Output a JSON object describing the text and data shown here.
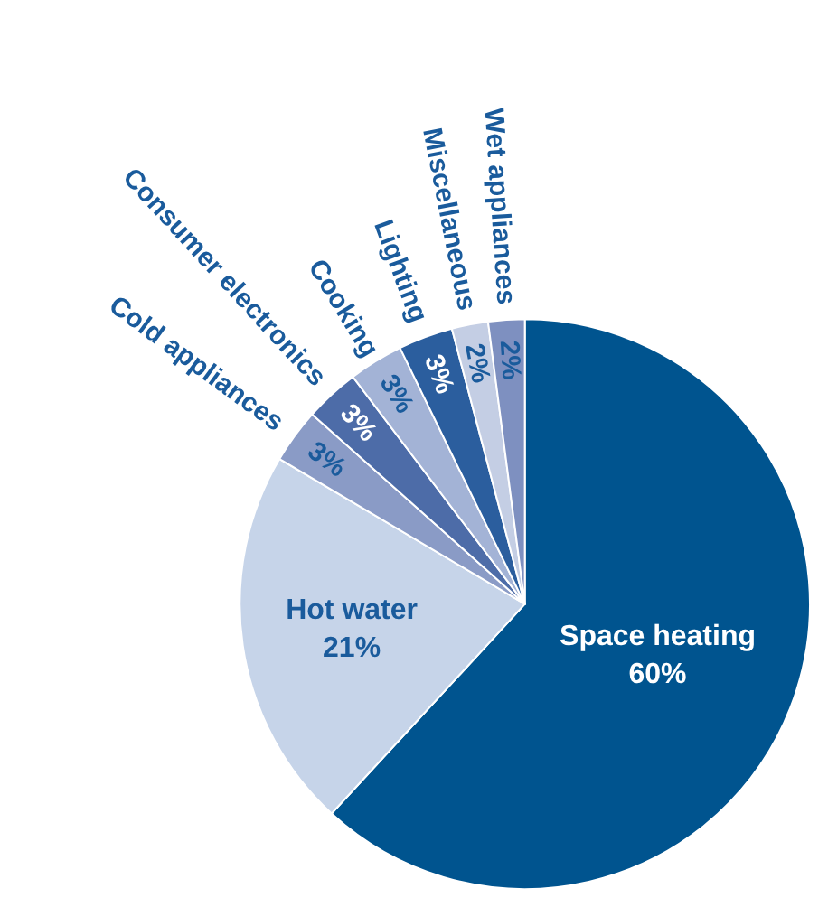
{
  "chart_data": {
    "type": "pie",
    "categories": [
      "Space heating",
      "Hot water",
      "Cold appliances",
      "Consumer electronics",
      "Cooking",
      "Lighting",
      "Miscellaneous",
      "Wet appliances"
    ],
    "values": [
      60,
      21,
      3,
      3,
      3,
      3,
      2,
      2
    ],
    "value_labels": [
      "60%",
      "21%",
      "3%",
      "3%",
      "3%",
      "3%",
      "2%",
      "2%"
    ],
    "colors": [
      "#00548f",
      "#c6d4e9",
      "#8a9bc6",
      "#4d6ca8",
      "#a3b3d6",
      "#2b5e9e",
      "#c4cee4",
      "#7e90c0"
    ],
    "legend": false
  }
}
